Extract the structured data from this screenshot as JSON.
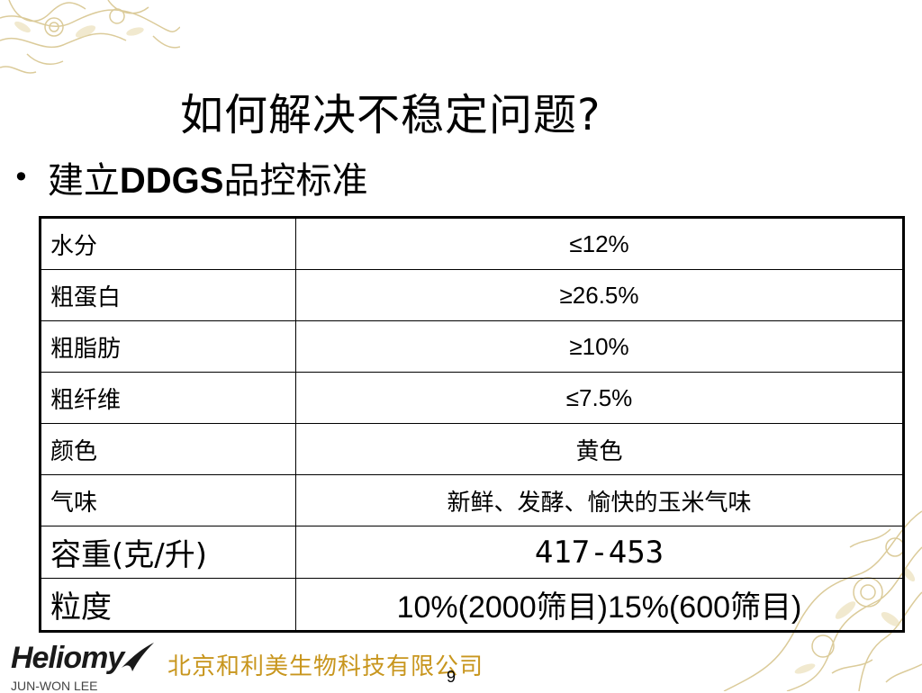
{
  "slide": {
    "title": "如何解决不稳定问题?",
    "bullet": {
      "prefix": "建立",
      "latin": "DDGS",
      "suffix": "品控标准"
    }
  },
  "table": {
    "rows": [
      {
        "label": "水分",
        "value": "≤12%"
      },
      {
        "label": "粗蛋白",
        "value": "≥26.5%"
      },
      {
        "label": "粗脂肪",
        "value": "≥10%"
      },
      {
        "label": "粗纤维",
        "value": "≤7.5%"
      },
      {
        "label": "颜色",
        "value": "黄色"
      },
      {
        "label": "气味",
        "value": "新鲜、发酵、愉快的玉米气味"
      },
      {
        "label": "容重(克/升)",
        "value": "417-453"
      },
      {
        "label": "粒度",
        "value": "10%(2000筛目)15%(600筛目)"
      }
    ]
  },
  "footer": {
    "logo_text": "Heliomy",
    "company": "北京和利美生物科技有限公司",
    "person": "JUN-WON LEE",
    "page_number": "9"
  },
  "colors": {
    "ornament": "#d8c690",
    "company_text": "#c8961e",
    "swoosh": "#1a1a1a"
  }
}
